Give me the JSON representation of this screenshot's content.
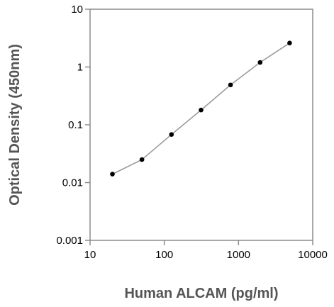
{
  "chart_data": {
    "type": "line",
    "title": "",
    "xlabel": "Human ALCAM (pg/ml)",
    "ylabel": "Optical Density (450nm)",
    "x_scale": "log",
    "y_scale": "log",
    "xlim": [
      10,
      10000
    ],
    "ylim": [
      0.001,
      10
    ],
    "x_ticks": [
      "10",
      "100",
      "1000",
      "10000"
    ],
    "y_ticks": [
      "0.001",
      "0.01",
      "0.1",
      "1",
      "10"
    ],
    "grid": false,
    "legend": "none",
    "series": [
      {
        "x": [
          20,
          50,
          125,
          313,
          781,
          1953,
          4883
        ],
        "y": [
          0.014,
          0.025,
          0.068,
          0.18,
          0.49,
          1.2,
          2.6
        ]
      }
    ],
    "colors": {
      "line": "#9a9a9a",
      "marker": "#000000",
      "axis": "#8c8c8c",
      "axis_title": "#555555"
    }
  }
}
